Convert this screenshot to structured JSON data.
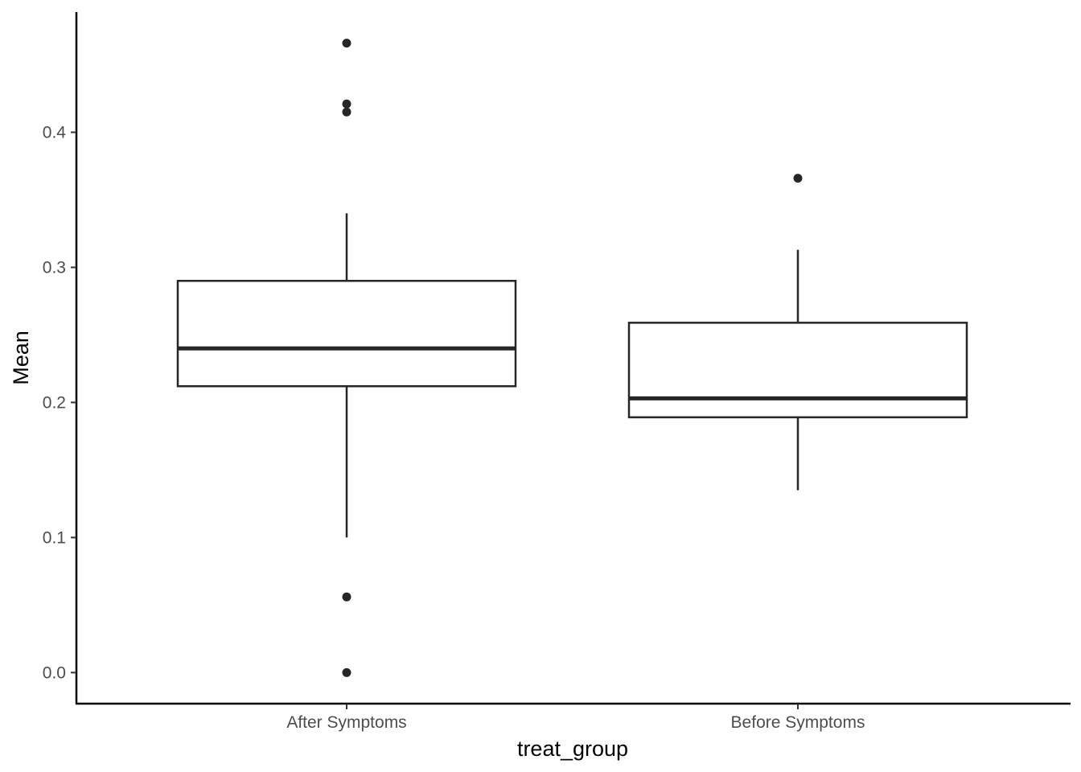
{
  "chart_data": {
    "type": "boxplot",
    "xlabel": "treat_group",
    "ylabel": "Mean",
    "categories": [
      "After Symptoms",
      "Before Symptoms"
    ],
    "y_ticks": [
      "0.0",
      "0.1",
      "0.2",
      "0.3",
      "0.4"
    ],
    "y_tick_values": [
      0.0,
      0.1,
      0.2,
      0.3,
      0.4
    ],
    "ylim": [
      -0.023,
      0.489
    ],
    "grid": false,
    "legend": "none",
    "boxes": [
      {
        "category": "After Symptoms",
        "whisker_low": 0.1,
        "q1": 0.212,
        "median": 0.24,
        "q3": 0.29,
        "whisker_high": 0.34,
        "outliers": [
          0.466,
          0.421,
          0.415,
          0.056,
          0.0
        ]
      },
      {
        "category": "Before Symptoms",
        "whisker_low": 0.135,
        "q1": 0.189,
        "median": 0.203,
        "q3": 0.259,
        "whisker_high": 0.313,
        "outliers": [
          0.366
        ]
      }
    ],
    "colors": {
      "box_line": "#262626",
      "axis": "#000000",
      "tick_text": "#4d4d4d",
      "fill": "#ffffff"
    }
  }
}
